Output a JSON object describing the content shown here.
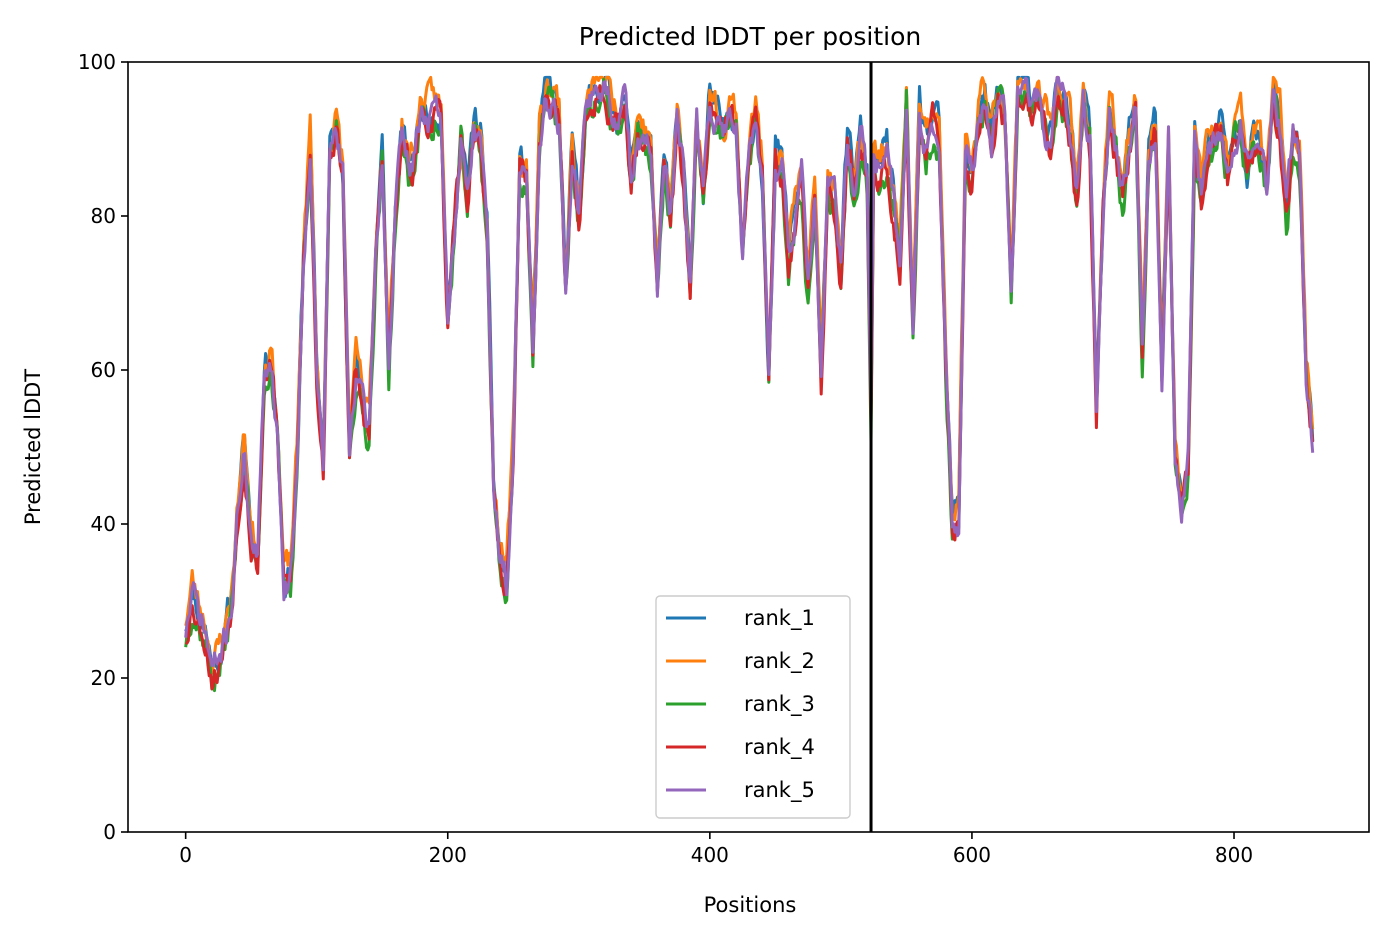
{
  "chart_data": {
    "type": "line",
    "title": "Predicted lDDT per position",
    "xlabel": "Positions",
    "ylabel": "Predicted lDDT",
    "xlim": [
      -44,
      903
    ],
    "ylim": [
      0,
      100
    ],
    "xticks": [
      0,
      200,
      400,
      600,
      800
    ],
    "yticks": [
      0,
      20,
      40,
      60,
      80,
      100
    ],
    "grid": false,
    "legend_position": "lower-center",
    "vline_x": 523,
    "vline_color": "#000000",
    "base_x": [
      0,
      5,
      10,
      15,
      20,
      25,
      30,
      35,
      40,
      45,
      50,
      55,
      60,
      65,
      70,
      75,
      80,
      85,
      90,
      95,
      100,
      105,
      110,
      115,
      120,
      125,
      130,
      135,
      140,
      145,
      150,
      155,
      160,
      165,
      170,
      175,
      180,
      185,
      190,
      195,
      200,
      205,
      210,
      215,
      220,
      225,
      230,
      235,
      240,
      245,
      250,
      255,
      260,
      265,
      270,
      275,
      280,
      285,
      290,
      295,
      300,
      305,
      310,
      315,
      320,
      325,
      330,
      335,
      340,
      345,
      350,
      355,
      360,
      365,
      370,
      375,
      380,
      385,
      390,
      395,
      400,
      405,
      410,
      415,
      420,
      425,
      430,
      435,
      440,
      445,
      450,
      455,
      460,
      465,
      470,
      475,
      480,
      485,
      490,
      495,
      500,
      505,
      510,
      515,
      520,
      523,
      525,
      530,
      535,
      540,
      545,
      550,
      555,
      560,
      565,
      570,
      575,
      580,
      585,
      590,
      595,
      600,
      605,
      610,
      615,
      620,
      625,
      630,
      635,
      640,
      645,
      650,
      655,
      660,
      665,
      670,
      675,
      680,
      685,
      690,
      695,
      700,
      705,
      710,
      715,
      720,
      725,
      730,
      735,
      740,
      745,
      750,
      755,
      760,
      765,
      770,
      775,
      780,
      785,
      790,
      795,
      800,
      805,
      810,
      815,
      820,
      825,
      830,
      835,
      840,
      845,
      850,
      855,
      860
    ],
    "base_y": [
      26,
      31,
      28,
      26,
      21,
      22,
      25,
      30,
      42,
      50,
      38,
      35,
      60,
      62,
      52,
      32,
      33,
      48,
      75,
      90,
      60,
      48,
      88,
      91,
      85,
      50,
      60,
      55,
      52,
      75,
      88,
      60,
      80,
      90,
      86,
      88,
      94,
      93,
      94,
      92,
      66,
      78,
      90,
      82,
      92,
      90,
      78,
      45,
      35,
      32,
      50,
      86,
      85,
      64,
      90,
      96,
      95,
      93,
      70,
      88,
      80,
      92,
      95,
      96,
      97,
      94,
      92,
      95,
      85,
      92,
      90,
      88,
      70,
      86,
      80,
      92,
      85,
      70,
      92,
      82,
      95,
      92,
      90,
      94,
      92,
      75,
      88,
      93,
      85,
      60,
      88,
      86,
      75,
      80,
      85,
      70,
      82,
      58,
      85,
      82,
      72,
      90,
      84,
      90,
      85,
      55,
      87,
      86,
      88,
      82,
      74,
      95,
      65,
      93,
      89,
      92,
      90,
      60,
      40,
      41,
      88,
      85,
      92,
      95,
      90,
      96,
      93,
      70,
      96,
      97,
      93,
      94,
      92,
      90,
      96,
      95,
      91,
      82,
      95,
      90,
      54,
      80,
      93,
      88,
      82,
      90,
      95,
      62,
      88,
      92,
      60,
      90,
      50,
      42,
      48,
      90,
      82,
      88,
      90,
      92,
      85,
      90,
      92,
      86,
      90,
      88,
      84,
      95,
      92,
      80,
      90,
      88,
      60,
      50
    ]
  },
  "series": [
    {
      "name": "rank_1",
      "color": "#1f77b4",
      "seed": 11,
      "offset": 0.9
    },
    {
      "name": "rank_2",
      "color": "#ff7f0e",
      "seed": 23,
      "offset": 1.6
    },
    {
      "name": "rank_3",
      "color": "#2ca02c",
      "seed": 37,
      "offset": -1.2
    },
    {
      "name": "rank_4",
      "color": "#d62728",
      "seed": 53,
      "offset": -0.6
    },
    {
      "name": "rank_5",
      "color": "#9467bd",
      "seed": 71,
      "offset": 0.0
    }
  ]
}
